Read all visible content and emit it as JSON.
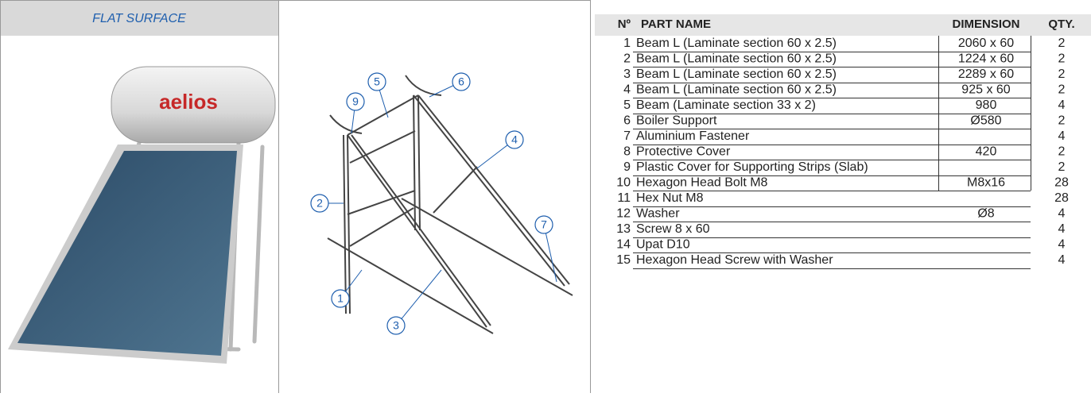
{
  "left": {
    "title": "FLAT SURFACE",
    "brand": "aelios"
  },
  "diagram": {
    "callouts": [
      "1",
      "2",
      "3",
      "4",
      "5",
      "6",
      "7",
      "9"
    ]
  },
  "table": {
    "header": {
      "no": "Nº",
      "name": "PART NAME",
      "dimension": "DIMENSION",
      "qty": "QTY."
    },
    "rows": [
      {
        "no": 1,
        "name": "Beam L (Laminate section 60 x 2.5)",
        "dimension": "2060 x 60",
        "qty": 2
      },
      {
        "no": 2,
        "name": "Beam L (Laminate section 60 x 2.5)",
        "dimension": "1224 x 60",
        "qty": 2
      },
      {
        "no": 3,
        "name": "Beam L (Laminate section 60 x 2.5)",
        "dimension": "2289 x 60",
        "qty": 2
      },
      {
        "no": 4,
        "name": "Beam L (Laminate section 60 x 2.5)",
        "dimension": "925 x 60",
        "qty": 2
      },
      {
        "no": 5,
        "name": "Beam (Laminate section 33 x 2)",
        "dimension": "980",
        "qty": 4
      },
      {
        "no": 6,
        "name": "Boiler Support",
        "dimension": "Ø580",
        "qty": 2
      },
      {
        "no": 7,
        "name": "Aluminium Fastener",
        "qty": 4
      },
      {
        "no": 8,
        "name": "Protective Cover",
        "dimension": "420",
        "qty": 2
      },
      {
        "no": 9,
        "name": "Plastic Cover for Supporting Strips (Slab)",
        "qty": 2
      },
      {
        "no": 10,
        "name": "Hexagon Head Bolt M8",
        "dimension": "M8x16",
        "qty": 28
      },
      {
        "no": 11,
        "name": "Hex Nut M8",
        "qty": 28
      },
      {
        "no": 12,
        "name": "Washer",
        "dimension": "Ø8",
        "qty": 4
      },
      {
        "no": 13,
        "name": "Screw 8 x 60",
        "qty": 4
      },
      {
        "no": 14,
        "name": "Upat D10",
        "qty": 4
      },
      {
        "no": 15,
        "name": "Hexagon Head Screw with Washer",
        "qty": 4
      }
    ]
  }
}
